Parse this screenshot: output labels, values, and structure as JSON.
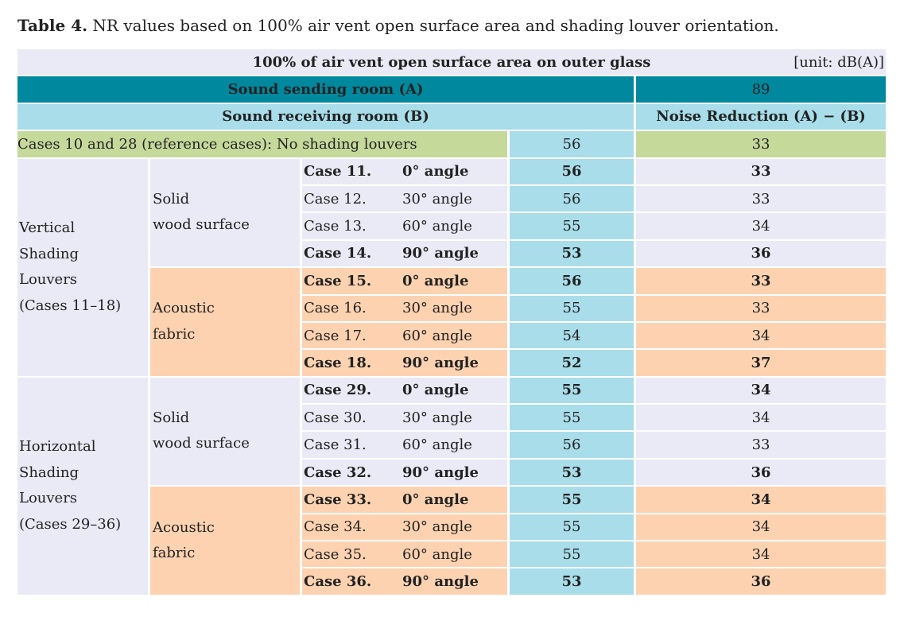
{
  "caption": {
    "label": "Table 4.",
    "text": " NR values based on 100% air vent open surface area and shading louver orientation."
  },
  "header": {
    "title": "100% of air vent open surface area on outer glass",
    "unit": "[unit: dB(A)]",
    "sending_label": "Sound sending room (A)",
    "sending_value": "89",
    "receiving_label": "Sound receiving room (B)",
    "nr_label": "Noise Reduction (A) − (B)"
  },
  "reference": {
    "label": "Cases 10 and 28 (reference cases): No shading louvers",
    "received": "56",
    "nr": "33"
  },
  "groups": [
    {
      "line1": "Vertical",
      "line2": "Shading",
      "line3": "Louvers",
      "line4": "(Cases 11–18)",
      "materials": [
        {
          "line1": "Solid",
          "line2": "wood surface",
          "rows": [
            {
              "case": "Case 11.",
              "angle": "0° angle",
              "received": "56",
              "nr": "33",
              "bold": true
            },
            {
              "case": "Case 12.",
              "angle": "30° angle",
              "received": "56",
              "nr": "33",
              "bold": false
            },
            {
              "case": "Case 13.",
              "angle": "60° angle",
              "received": "55",
              "nr": "34",
              "bold": false
            },
            {
              "case": "Case 14.",
              "angle": "90° angle",
              "received": "53",
              "nr": "36",
              "bold": true
            }
          ]
        },
        {
          "line1": "Acoustic",
          "line2": "fabric",
          "rows": [
            {
              "case": "Case 15.",
              "angle": "0° angle",
              "received": "56",
              "nr": "33",
              "bold": true
            },
            {
              "case": "Case 16.",
              "angle": "30° angle",
              "received": "55",
              "nr": "33",
              "bold": false
            },
            {
              "case": "Case 17.",
              "angle": "60° angle",
              "received": "54",
              "nr": "34",
              "bold": false
            },
            {
              "case": "Case 18.",
              "angle": "90° angle",
              "received": "52",
              "nr": "37",
              "bold": true
            }
          ]
        }
      ]
    },
    {
      "line1": "Horizontal",
      "line2": "Shading",
      "line3": "Louvers",
      "line4": "(Cases 29–36)",
      "materials": [
        {
          "line1": "Solid",
          "line2": "wood surface",
          "rows": [
            {
              "case": "Case 29.",
              "angle": "0° angle",
              "received": "55",
              "nr": "34",
              "bold": true
            },
            {
              "case": "Case 30.",
              "angle": "30° angle",
              "received": "55",
              "nr": "34",
              "bold": false
            },
            {
              "case": "Case 31.",
              "angle": "60° angle",
              "received": "56",
              "nr": "33",
              "bold": false
            },
            {
              "case": "Case 32.",
              "angle": "90° angle",
              "received": "53",
              "nr": "36",
              "bold": true
            }
          ]
        },
        {
          "line1": "Acoustic",
          "line2": "fabric",
          "rows": [
            {
              "case": "Case 33.",
              "angle": "0° angle",
              "received": "55",
              "nr": "34",
              "bold": true
            },
            {
              "case": "Case 34.",
              "angle": "30° angle",
              "received": "55",
              "nr": "34",
              "bold": false
            },
            {
              "case": "Case 35.",
              "angle": "60° angle",
              "received": "55",
              "nr": "34",
              "bold": false
            },
            {
              "case": "Case 36.",
              "angle": "90° angle",
              "received": "53",
              "nr": "36",
              "bold": true
            }
          ]
        }
      ]
    }
  ],
  "colors": {
    "header_grey": "#e9eaf5",
    "header_teal": "#00889e",
    "light_blue": "#a8dde9",
    "reference_green": "#c5d99b",
    "fabric_peach": "#fdd2b1"
  }
}
